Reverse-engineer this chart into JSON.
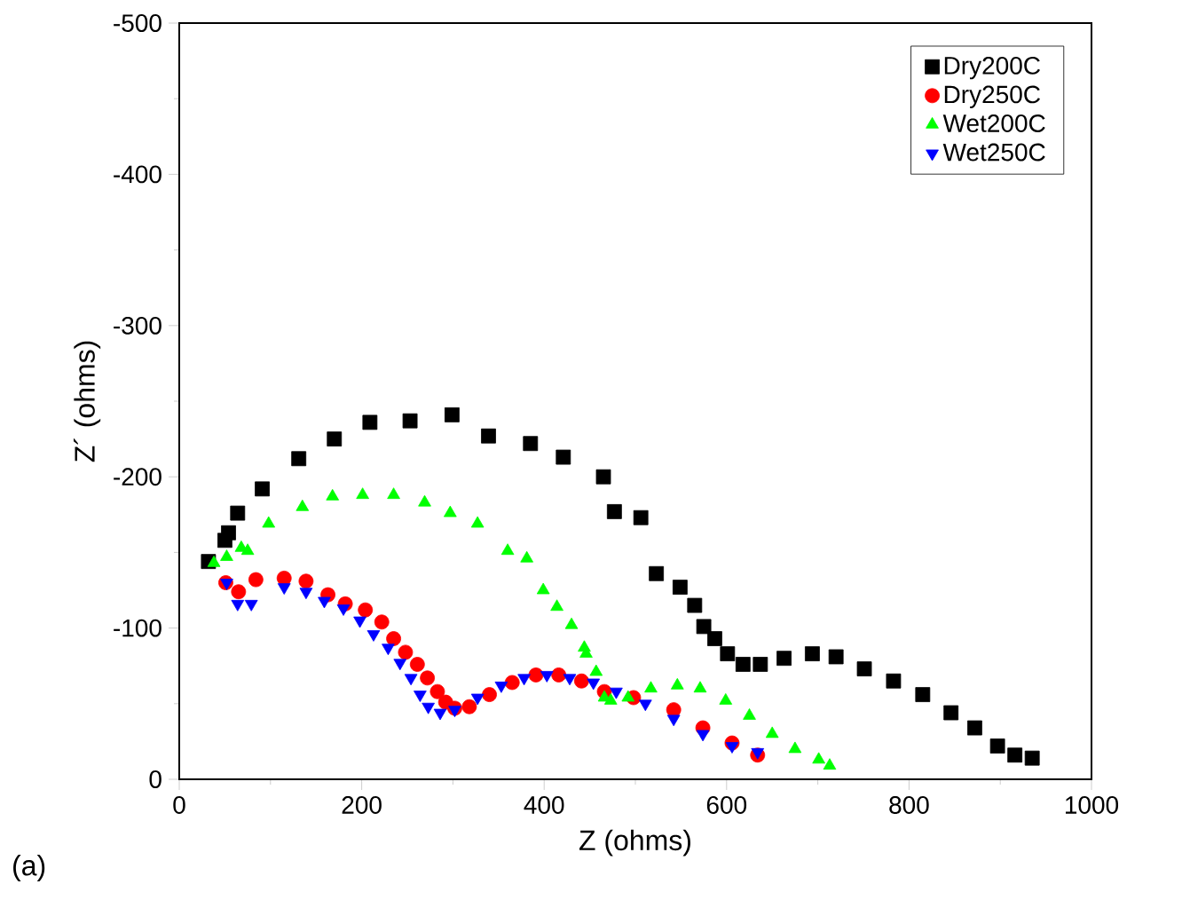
{
  "chart_data": {
    "type": "scatter",
    "xlabel": "Z (ohms)",
    "ylabel": "Z´ (ohms)",
    "xlim": [
      0,
      1000
    ],
    "xticks": [
      0,
      200,
      400,
      600,
      800,
      1000
    ],
    "ylim": [
      0,
      -500
    ],
    "yticks": [
      0,
      -100,
      -200,
      -300,
      -400,
      -500
    ],
    "legend": "top right",
    "grid": false,
    "annotations": [
      "(a)"
    ],
    "series": [
      {
        "name": "Dry200C",
        "color": "#000000",
        "marker": "square",
        "x": [
          32,
          50,
          54,
          64,
          91,
          131,
          170,
          209,
          253,
          299,
          339,
          385,
          421,
          465,
          477,
          506,
          523,
          549,
          565,
          575,
          587,
          601,
          618,
          637,
          663,
          694,
          720,
          751,
          783,
          815,
          846,
          872,
          897,
          916,
          935
        ],
        "values": [
          -144,
          -158,
          -163,
          -176,
          -192,
          -212,
          -225,
          -236,
          -237,
          -241,
          -227,
          -222,
          -213,
          -200,
          -177,
          -173,
          -136,
          -127,
          -115,
          -101,
          -93,
          -83,
          -76,
          -76,
          -80,
          -83,
          -81,
          -73,
          -65,
          -56,
          -44,
          -34,
          -22,
          -16,
          -14
        ]
      },
      {
        "name": "Dry250C",
        "color": "#ff0000",
        "marker": "circle",
        "x": [
          51,
          65,
          84,
          115,
          139,
          163,
          182,
          204,
          222,
          235,
          248,
          261,
          272,
          283,
          292,
          302,
          318,
          340,
          365,
          391,
          416,
          441,
          466,
          498,
          542,
          574,
          606,
          634
        ],
        "values": [
          -130,
          -124,
          -132,
          -133,
          -131,
          -122,
          -116,
          -112,
          -104,
          -93,
          -84,
          -76,
          -67,
          -58,
          -51,
          -47,
          -48,
          -56,
          -64,
          -69,
          -69,
          -65,
          -58,
          -54,
          -46,
          -34,
          -24,
          -16
        ]
      },
      {
        "name": "Wet200C",
        "color": "#00ff00",
        "marker": "triangle",
        "x": [
          38,
          52,
          68,
          75,
          98,
          135,
          168,
          201,
          235,
          269,
          297,
          327,
          360,
          381,
          399,
          414,
          430,
          444,
          446,
          457,
          466,
          473,
          492,
          517,
          546,
          571,
          599,
          625,
          650,
          675,
          701,
          713
        ],
        "values": [
          -143,
          -147,
          -153,
          -151,
          -169,
          -180,
          -187,
          -188,
          -188,
          -183,
          -176,
          -169,
          -151,
          -146,
          -125,
          -114,
          -102,
          -87,
          -83,
          -71,
          -54,
          -52,
          -54,
          -60,
          -62,
          -60,
          -52,
          -42,
          -30,
          -20,
          -13,
          -9
        ]
      },
      {
        "name": "Wet250C",
        "color": "#0000ff",
        "marker": "triangle_down",
        "x": [
          52,
          64,
          79,
          115,
          139,
          159,
          180,
          198,
          213,
          229,
          242,
          254,
          264,
          273,
          286,
          302,
          327,
          353,
          378,
          403,
          428,
          454,
          479,
          511,
          542,
          574,
          606,
          634
        ],
        "values": [
          -130,
          -116,
          -116,
          -127,
          -124,
          -118,
          -113,
          -105,
          -96,
          -87,
          -77,
          -67,
          -56,
          -48,
          -44,
          -46,
          -54,
          -62,
          -67,
          -69,
          -67,
          -64,
          -58,
          -50,
          -40,
          -30,
          -22,
          -18
        ]
      }
    ]
  }
}
